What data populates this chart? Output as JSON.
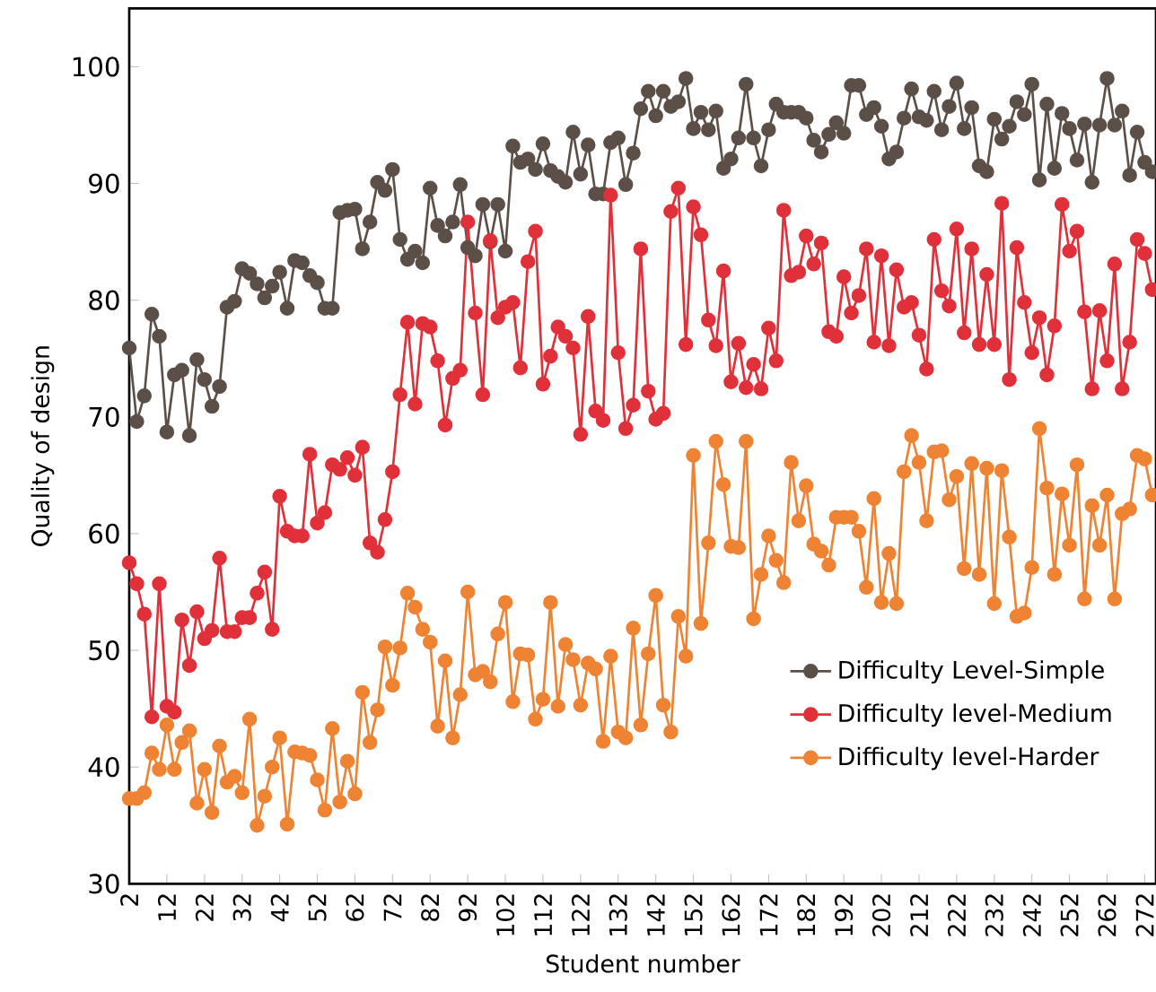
{
  "chart_data": {
    "type": "line",
    "xlabel": "Student number",
    "ylabel": "Quality of design",
    "x": [
      2,
      4,
      6,
      8,
      10,
      12,
      14,
      16,
      18,
      20,
      22,
      24,
      26,
      28,
      30,
      32,
      34,
      36,
      38,
      40,
      42,
      44,
      46,
      48,
      50,
      52,
      54,
      56,
      58,
      60,
      62,
      64,
      66,
      68,
      70,
      72,
      74,
      76,
      78,
      80,
      82,
      84,
      86,
      88,
      90,
      92,
      94,
      96,
      98,
      100,
      102,
      104,
      106,
      108,
      110,
      112,
      114,
      116,
      118,
      120,
      122,
      124,
      126,
      128,
      130,
      132,
      134,
      136,
      138,
      140,
      142,
      144,
      146,
      148,
      150,
      152,
      154,
      156,
      158,
      160,
      162,
      164,
      166,
      168,
      170,
      172,
      174,
      176,
      178,
      180,
      182,
      184,
      186,
      188,
      190,
      192,
      194,
      196,
      198,
      200,
      202,
      204,
      206,
      208,
      210,
      212,
      214,
      216,
      218,
      220,
      222,
      224,
      226,
      228,
      230,
      232,
      234,
      236,
      238,
      240,
      242,
      244,
      246,
      248,
      250,
      252,
      254,
      256,
      258,
      260,
      262,
      264,
      266,
      268,
      270,
      272,
      274
    ],
    "series": [
      {
        "name": "Difficulty Level-Simple",
        "color": "#5b4f47",
        "values": [
          75.9,
          69.6,
          71.8,
          78.8,
          76.9,
          68.7,
          73.6,
          74.0,
          68.4,
          74.9,
          73.2,
          70.9,
          72.6,
          79.4,
          79.9,
          82.7,
          82.3,
          81.4,
          80.2,
          81.2,
          82.4,
          79.3,
          83.4,
          83.2,
          82.1,
          81.5,
          79.3,
          79.3,
          87.5,
          87.7,
          87.8,
          84.4,
          86.7,
          90.1,
          89.4,
          91.2,
          85.2,
          83.5,
          84.2,
          83.2,
          89.6,
          86.4,
          85.5,
          86.7,
          89.9,
          84.5,
          83.8,
          88.2,
          85.0,
          88.2,
          84.2,
          93.2,
          91.8,
          92.1,
          91.2,
          93.4,
          91.1,
          90.6,
          90.1,
          94.4,
          90.8,
          93.3,
          89.1,
          89.1,
          93.5,
          93.9,
          89.9,
          92.6,
          96.4,
          97.9,
          95.8,
          97.9,
          96.6,
          97.0,
          99.0,
          94.7,
          96.1,
          94.6,
          96.2,
          91.3,
          92.1,
          93.9,
          98.5,
          93.9,
          91.5,
          94.6,
          96.8,
          96.1,
          96.1,
          96.1,
          95.6,
          93.7,
          92.7,
          94.2,
          95.2,
          94.3,
          98.4,
          98.4,
          95.9,
          96.5,
          94.9,
          92.1,
          92.7,
          95.6,
          98.1,
          95.7,
          95.4,
          97.9,
          94.6,
          96.6,
          98.6,
          94.7,
          96.5,
          91.5,
          91.0,
          95.5,
          93.8,
          94.9,
          97.0,
          95.9,
          98.5,
          90.3,
          96.8,
          91.3,
          96.0,
          94.7,
          92.0,
          95.1,
          90.1,
          95.0,
          99.0,
          95.0,
          96.2,
          90.7,
          94.4,
          91.8,
          91.0
        ]
      },
      {
        "name": "Difficulty level-Medium",
        "color": "#e0303a",
        "values": [
          57.5,
          55.7,
          53.1,
          44.3,
          55.7,
          45.2,
          44.7,
          52.6,
          48.7,
          53.3,
          51.0,
          51.7,
          57.9,
          51.6,
          51.6,
          52.8,
          52.8,
          54.9,
          56.7,
          51.8,
          63.2,
          60.2,
          59.8,
          59.8,
          66.8,
          60.9,
          61.8,
          65.9,
          65.5,
          66.5,
          65.0,
          67.4,
          59.2,
          58.4,
          61.2,
          65.3,
          71.9,
          78.1,
          71.1,
          78.0,
          77.7,
          74.8,
          69.3,
          73.3,
          74.0,
          86.7,
          78.9,
          71.9,
          85.1,
          78.5,
          79.4,
          79.8,
          74.2,
          83.3,
          85.9,
          72.8,
          75.2,
          77.7,
          76.9,
          75.9,
          68.5,
          78.6,
          70.5,
          69.7,
          89.0,
          75.5,
          69.0,
          71.0,
          84.4,
          72.2,
          69.8,
          70.3,
          87.6,
          89.6,
          76.2,
          88.0,
          85.6,
          78.3,
          76.1,
          82.5,
          73.0,
          76.3,
          72.5,
          74.5,
          72.4,
          77.6,
          74.8,
          87.7,
          82.1,
          82.4,
          85.5,
          83.1,
          84.9,
          77.3,
          76.9,
          82.0,
          78.9,
          80.4,
          84.4,
          76.4,
          83.8,
          76.1,
          82.6,
          79.4,
          79.8,
          77.0,
          74.1,
          85.2,
          80.8,
          79.5,
          86.1,
          77.2,
          84.4,
          76.2,
          82.2,
          76.2,
          88.3,
          73.2,
          84.5,
          79.8,
          75.5,
          78.5,
          73.6,
          77.8,
          88.2,
          84.2,
          85.9,
          79.0,
          72.4,
          79.1,
          74.8,
          83.1,
          72.4,
          76.4,
          85.2,
          84.0,
          80.9
        ]
      },
      {
        "name": "Difficulty level-Harder",
        "color": "#ee8333",
        "values": [
          37.3,
          37.3,
          37.8,
          41.2,
          39.8,
          43.6,
          39.8,
          42.1,
          43.1,
          36.9,
          39.8,
          36.1,
          41.8,
          38.7,
          39.2,
          37.8,
          44.1,
          35.0,
          37.5,
          40.0,
          42.5,
          35.1,
          41.3,
          41.2,
          41.0,
          38.9,
          36.3,
          43.3,
          37.0,
          40.5,
          37.7,
          46.4,
          42.1,
          44.9,
          50.3,
          47.0,
          50.2,
          54.9,
          53.7,
          51.8,
          50.7,
          43.5,
          49.1,
          42.5,
          46.2,
          55.0,
          47.9,
          48.2,
          47.3,
          51.4,
          54.1,
          45.6,
          49.7,
          49.6,
          44.1,
          45.8,
          54.1,
          45.2,
          50.5,
          49.2,
          45.3,
          48.9,
          48.4,
          42.2,
          49.5,
          43.0,
          42.5,
          51.9,
          43.6,
          49.7,
          54.7,
          45.3,
          43.0,
          52.9,
          49.5,
          66.7,
          52.3,
          59.2,
          67.9,
          64.2,
          58.9,
          58.8,
          67.9,
          52.7,
          56.5,
          59.8,
          57.7,
          55.8,
          66.1,
          61.1,
          64.1,
          59.1,
          58.5,
          57.3,
          61.4,
          61.4,
          61.4,
          60.2,
          55.4,
          63.0,
          54.1,
          58.3,
          54.0,
          65.3,
          68.4,
          66.1,
          61.1,
          67.0,
          67.1,
          62.9,
          64.9,
          57.0,
          66.0,
          56.5,
          65.6,
          54.0,
          65.4,
          59.7,
          52.9,
          53.2,
          57.1,
          69.0,
          63.9,
          56.5,
          63.4,
          59.0,
          65.9,
          54.4,
          62.4,
          59.0,
          63.3,
          54.4,
          61.7,
          62.1,
          66.7,
          66.4,
          63.3
        ]
      }
    ],
    "xlim": [
      2,
      275
    ],
    "ylim": [
      30,
      105
    ],
    "xticks": [
      2,
      12,
      22,
      32,
      42,
      52,
      62,
      72,
      82,
      92,
      102,
      112,
      122,
      132,
      142,
      152,
      162,
      172,
      182,
      192,
      202,
      212,
      222,
      232,
      242,
      252,
      262,
      272
    ],
    "yticks": [
      30,
      40,
      50,
      60,
      70,
      80,
      90,
      100
    ],
    "grid": false,
    "legend": "bottom right",
    "marker": "circle",
    "line_style": "solid"
  }
}
